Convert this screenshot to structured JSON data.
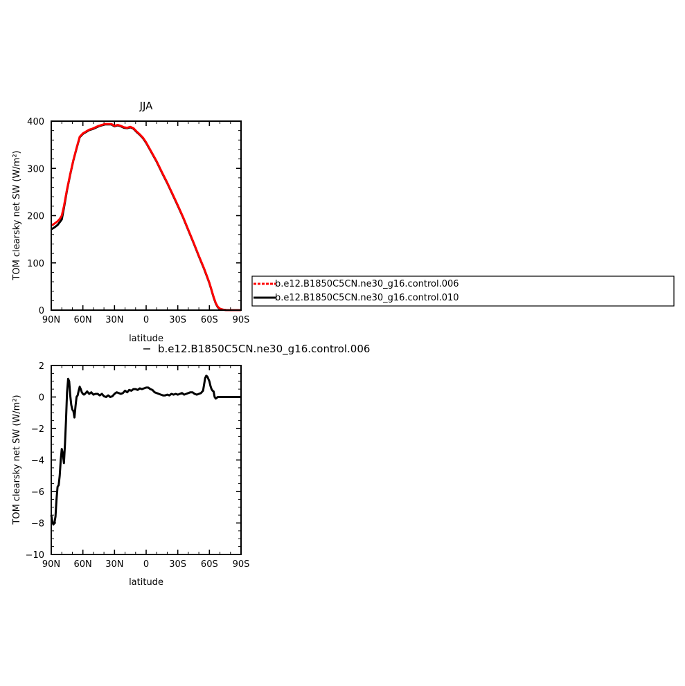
{
  "legend": {
    "entries": [
      {
        "label": "b.e12.B1850C5CN.ne30_g16.control.006",
        "color": "#ff0000",
        "dashed": true
      },
      {
        "label": "b.e12.B1850C5CN.ne30_g16.control.010",
        "color": "#000000",
        "dashed": false
      }
    ]
  },
  "chart_data": [
    {
      "type": "line",
      "title": "JJA",
      "xlabel": "latitude",
      "ylabel": "TOM clearsky net SW (W/m²)",
      "xlim": [
        90,
        -90
      ],
      "ylim": [
        0,
        400
      ],
      "xticks": [
        90,
        60,
        30,
        0,
        -30,
        -60,
        -90
      ],
      "xticklabels": [
        "90N",
        "60N",
        "30N",
        "0",
        "30S",
        "60S",
        "90S"
      ],
      "yticks": [
        0,
        100,
        200,
        300,
        400
      ],
      "yticklabels": [
        "0",
        "100",
        "200",
        "300",
        "400"
      ],
      "series": [
        {
          "name": "b.e12.B1850C5CN.ne30_g16.control.006",
          "color": "#ff0000",
          "x": [
            90,
            87,
            84,
            82,
            80,
            78,
            75,
            72,
            69,
            66,
            63,
            60,
            57,
            54,
            51,
            48,
            45,
            42,
            39,
            36,
            33,
            30,
            27,
            24,
            21,
            18,
            15,
            12,
            9,
            6,
            3,
            0,
            -5,
            -10,
            -15,
            -20,
            -25,
            -30,
            -35,
            -40,
            -45,
            -50,
            -55,
            -58,
            -60,
            -62,
            -64,
            -66,
            -68,
            -70,
            -73,
            -76,
            -80,
            -85,
            -90
          ],
          "y": [
            179,
            183,
            188,
            193,
            200,
            220,
            256,
            288,
            318,
            343,
            367,
            374,
            378,
            382,
            384,
            387,
            390,
            392,
            394,
            394,
            394,
            390,
            392,
            390,
            387,
            386,
            388,
            385,
            378,
            372,
            365,
            355,
            335,
            315,
            292,
            270,
            246,
            222,
            197,
            170,
            143,
            115,
            88,
            70,
            58,
            43,
            28,
            15,
            7,
            3,
            1,
            0,
            0,
            0,
            0
          ]
        },
        {
          "name": "b.e12.B1850C5CN.ne30_g16.control.010",
          "color": "#000000",
          "x": [
            90,
            87,
            84,
            82,
            80,
            78,
            75,
            72,
            69,
            66,
            63,
            60,
            57,
            54,
            51,
            48,
            45,
            42,
            39,
            36,
            33,
            30,
            27,
            24,
            21,
            18,
            15,
            12,
            9,
            6,
            3,
            0,
            -5,
            -10,
            -15,
            -20,
            -25,
            -30,
            -35,
            -40,
            -45,
            -50,
            -55,
            -58,
            -60,
            -62,
            -64,
            -66,
            -68,
            -70,
            -73,
            -76,
            -80,
            -85,
            -90
          ],
          "y": [
            171,
            175,
            180,
            186,
            192,
            216,
            254,
            287,
            317,
            342,
            366,
            373,
            377,
            381,
            383,
            386,
            389,
            391,
            393,
            393,
            393,
            389,
            391,
            389,
            386,
            385,
            387,
            384,
            377,
            371,
            364,
            354,
            334,
            314,
            291,
            269,
            245,
            221,
            196,
            169,
            142,
            114,
            87,
            69,
            57,
            42,
            27,
            14,
            6,
            2,
            1,
            0,
            0,
            0,
            0
          ]
        }
      ]
    },
    {
      "type": "line",
      "title": "",
      "annotation": "b.e12.B1850C5CN.ne30_g16.control.006",
      "xlabel": "latitude",
      "ylabel": "TOM clearsky net SW (W/m²)",
      "xlim": [
        90,
        -90
      ],
      "ylim": [
        -10,
        2
      ],
      "xticks": [
        90,
        60,
        30,
        0,
        -30,
        -60,
        -90
      ],
      "xticklabels": [
        "90N",
        "60N",
        "30N",
        "0",
        "30S",
        "60S",
        "90S"
      ],
      "yticks": [
        2,
        0,
        -2,
        -4,
        -6,
        -8,
        -10
      ],
      "yticklabels": [
        "2",
        "0",
        "−2",
        "−4",
        "−6",
        "−8",
        "−10"
      ],
      "series": [
        {
          "color": "#000000",
          "x": [
            90,
            89,
            88,
            87,
            86,
            85,
            84,
            83,
            82,
            81,
            80,
            79,
            78,
            77,
            76,
            75,
            74,
            73,
            72,
            71,
            70,
            69,
            68,
            67,
            66,
            65,
            64,
            63,
            62,
            61,
            60,
            59,
            58,
            56,
            54,
            52,
            50,
            48,
            46,
            44,
            42,
            40,
            38,
            36,
            34,
            32,
            30,
            28,
            26,
            24,
            22,
            20,
            18,
            16,
            14,
            12,
            10,
            8,
            6,
            4,
            2,
            0,
            -2,
            -4,
            -6,
            -8,
            -10,
            -12,
            -14,
            -16,
            -18,
            -20,
            -22,
            -24,
            -26,
            -28,
            -30,
            -32,
            -34,
            -36,
            -38,
            -40,
            -42,
            -44,
            -46,
            -48,
            -50,
            -52,
            -54,
            -55,
            -56,
            -57,
            -58,
            -59,
            -60,
            -61,
            -62,
            -63,
            -64,
            -65,
            -66,
            -68,
            -70,
            -75,
            -80,
            -85,
            -90
          ],
          "y": [
            -7.5,
            -7.9,
            -8.1,
            -8.0,
            -7.6,
            -6.5,
            -5.7,
            -5.6,
            -5.0,
            -4.0,
            -3.3,
            -3.6,
            -4.2,
            -3.0,
            -1.5,
            0.3,
            1.15,
            1.0,
            0.1,
            -0.5,
            -0.8,
            -0.9,
            -1.3,
            -0.6,
            0.0,
            0.1,
            0.4,
            0.65,
            0.5,
            0.3,
            0.2,
            0.15,
            0.2,
            0.35,
            0.2,
            0.3,
            0.15,
            0.2,
            0.2,
            0.1,
            0.2,
            0.05,
            0.0,
            0.1,
            0.0,
            0.05,
            0.2,
            0.3,
            0.25,
            0.2,
            0.25,
            0.4,
            0.3,
            0.45,
            0.4,
            0.5,
            0.5,
            0.45,
            0.55,
            0.5,
            0.55,
            0.6,
            0.6,
            0.5,
            0.45,
            0.3,
            0.25,
            0.2,
            0.15,
            0.1,
            0.1,
            0.15,
            0.1,
            0.2,
            0.15,
            0.2,
            0.15,
            0.2,
            0.25,
            0.15,
            0.2,
            0.25,
            0.3,
            0.3,
            0.2,
            0.15,
            0.2,
            0.25,
            0.4,
            0.8,
            1.2,
            1.35,
            1.3,
            1.15,
            1.0,
            0.7,
            0.5,
            0.4,
            0.35,
            0.0,
            -0.1,
            0.0,
            0.0,
            0.0,
            0.0,
            0.0,
            0.0
          ]
        }
      ]
    }
  ]
}
